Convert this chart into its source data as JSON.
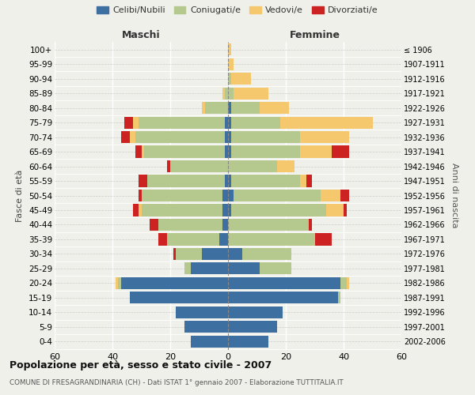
{
  "age_groups": [
    "100+",
    "95-99",
    "90-94",
    "85-89",
    "80-84",
    "75-79",
    "70-74",
    "65-69",
    "60-64",
    "55-59",
    "50-54",
    "45-49",
    "40-44",
    "35-39",
    "30-34",
    "25-29",
    "20-24",
    "15-19",
    "10-14",
    "5-9",
    "0-4"
  ],
  "birth_years": [
    "≤ 1906",
    "1907-1911",
    "1912-1916",
    "1917-1921",
    "1922-1926",
    "1927-1931",
    "1932-1936",
    "1937-1941",
    "1942-1946",
    "1947-1951",
    "1952-1956",
    "1957-1961",
    "1962-1966",
    "1967-1971",
    "1972-1976",
    "1977-1981",
    "1982-1986",
    "1987-1991",
    "1992-1996",
    "1997-2001",
    "2002-2006"
  ],
  "male_celibe": [
    0,
    0,
    0,
    0,
    0,
    1,
    1,
    1,
    0,
    1,
    2,
    2,
    2,
    3,
    9,
    13,
    37,
    34,
    18,
    15,
    13
  ],
  "male_coniugato": [
    0,
    0,
    0,
    1,
    8,
    30,
    31,
    28,
    20,
    27,
    28,
    28,
    22,
    18,
    9,
    2,
    1,
    0,
    0,
    0,
    0
  ],
  "male_vedovo": [
    0,
    0,
    0,
    1,
    1,
    2,
    2,
    1,
    0,
    0,
    0,
    1,
    0,
    0,
    0,
    0,
    1,
    0,
    0,
    0,
    0
  ],
  "male_divorziato": [
    0,
    0,
    0,
    0,
    0,
    3,
    3,
    2,
    1,
    3,
    1,
    2,
    3,
    3,
    1,
    0,
    0,
    0,
    0,
    0,
    0
  ],
  "female_nubile": [
    0,
    0,
    0,
    0,
    1,
    1,
    1,
    1,
    0,
    1,
    2,
    1,
    0,
    0,
    5,
    11,
    39,
    38,
    19,
    17,
    14
  ],
  "female_coniugata": [
    0,
    0,
    1,
    2,
    10,
    17,
    24,
    24,
    17,
    24,
    30,
    33,
    28,
    30,
    17,
    11,
    2,
    1,
    0,
    0,
    0
  ],
  "female_vedova": [
    1,
    2,
    7,
    12,
    10,
    32,
    17,
    11,
    6,
    2,
    7,
    6,
    0,
    0,
    0,
    0,
    1,
    0,
    0,
    0,
    0
  ],
  "female_divorziata": [
    0,
    0,
    0,
    0,
    0,
    0,
    0,
    6,
    0,
    2,
    3,
    1,
    1,
    6,
    0,
    0,
    0,
    0,
    0,
    0,
    0
  ],
  "color_celibe": "#3d6fa0",
  "color_coniugato": "#b5c98e",
  "color_vedovo": "#f5c86e",
  "color_divorziato": "#cc2222",
  "xlim": 60,
  "title": "Popolazione per età, sesso e stato civile - 2007",
  "subtitle": "COMUNE DI FRESAGRANDINARIA (CH) - Dati ISTAT 1° gennaio 2007 - Elaborazione TUTTITALIA.IT",
  "ylabel_left": "Fasce di età",
  "ylabel_right": "Anni di nascita",
  "xlabel_maschi": "Maschi",
  "xlabel_femmine": "Femmine",
  "legend_labels": [
    "Celibi/Nubili",
    "Coniugati/e",
    "Vedovi/e",
    "Divorziati/e"
  ],
  "background_color": "#f0f0eb"
}
